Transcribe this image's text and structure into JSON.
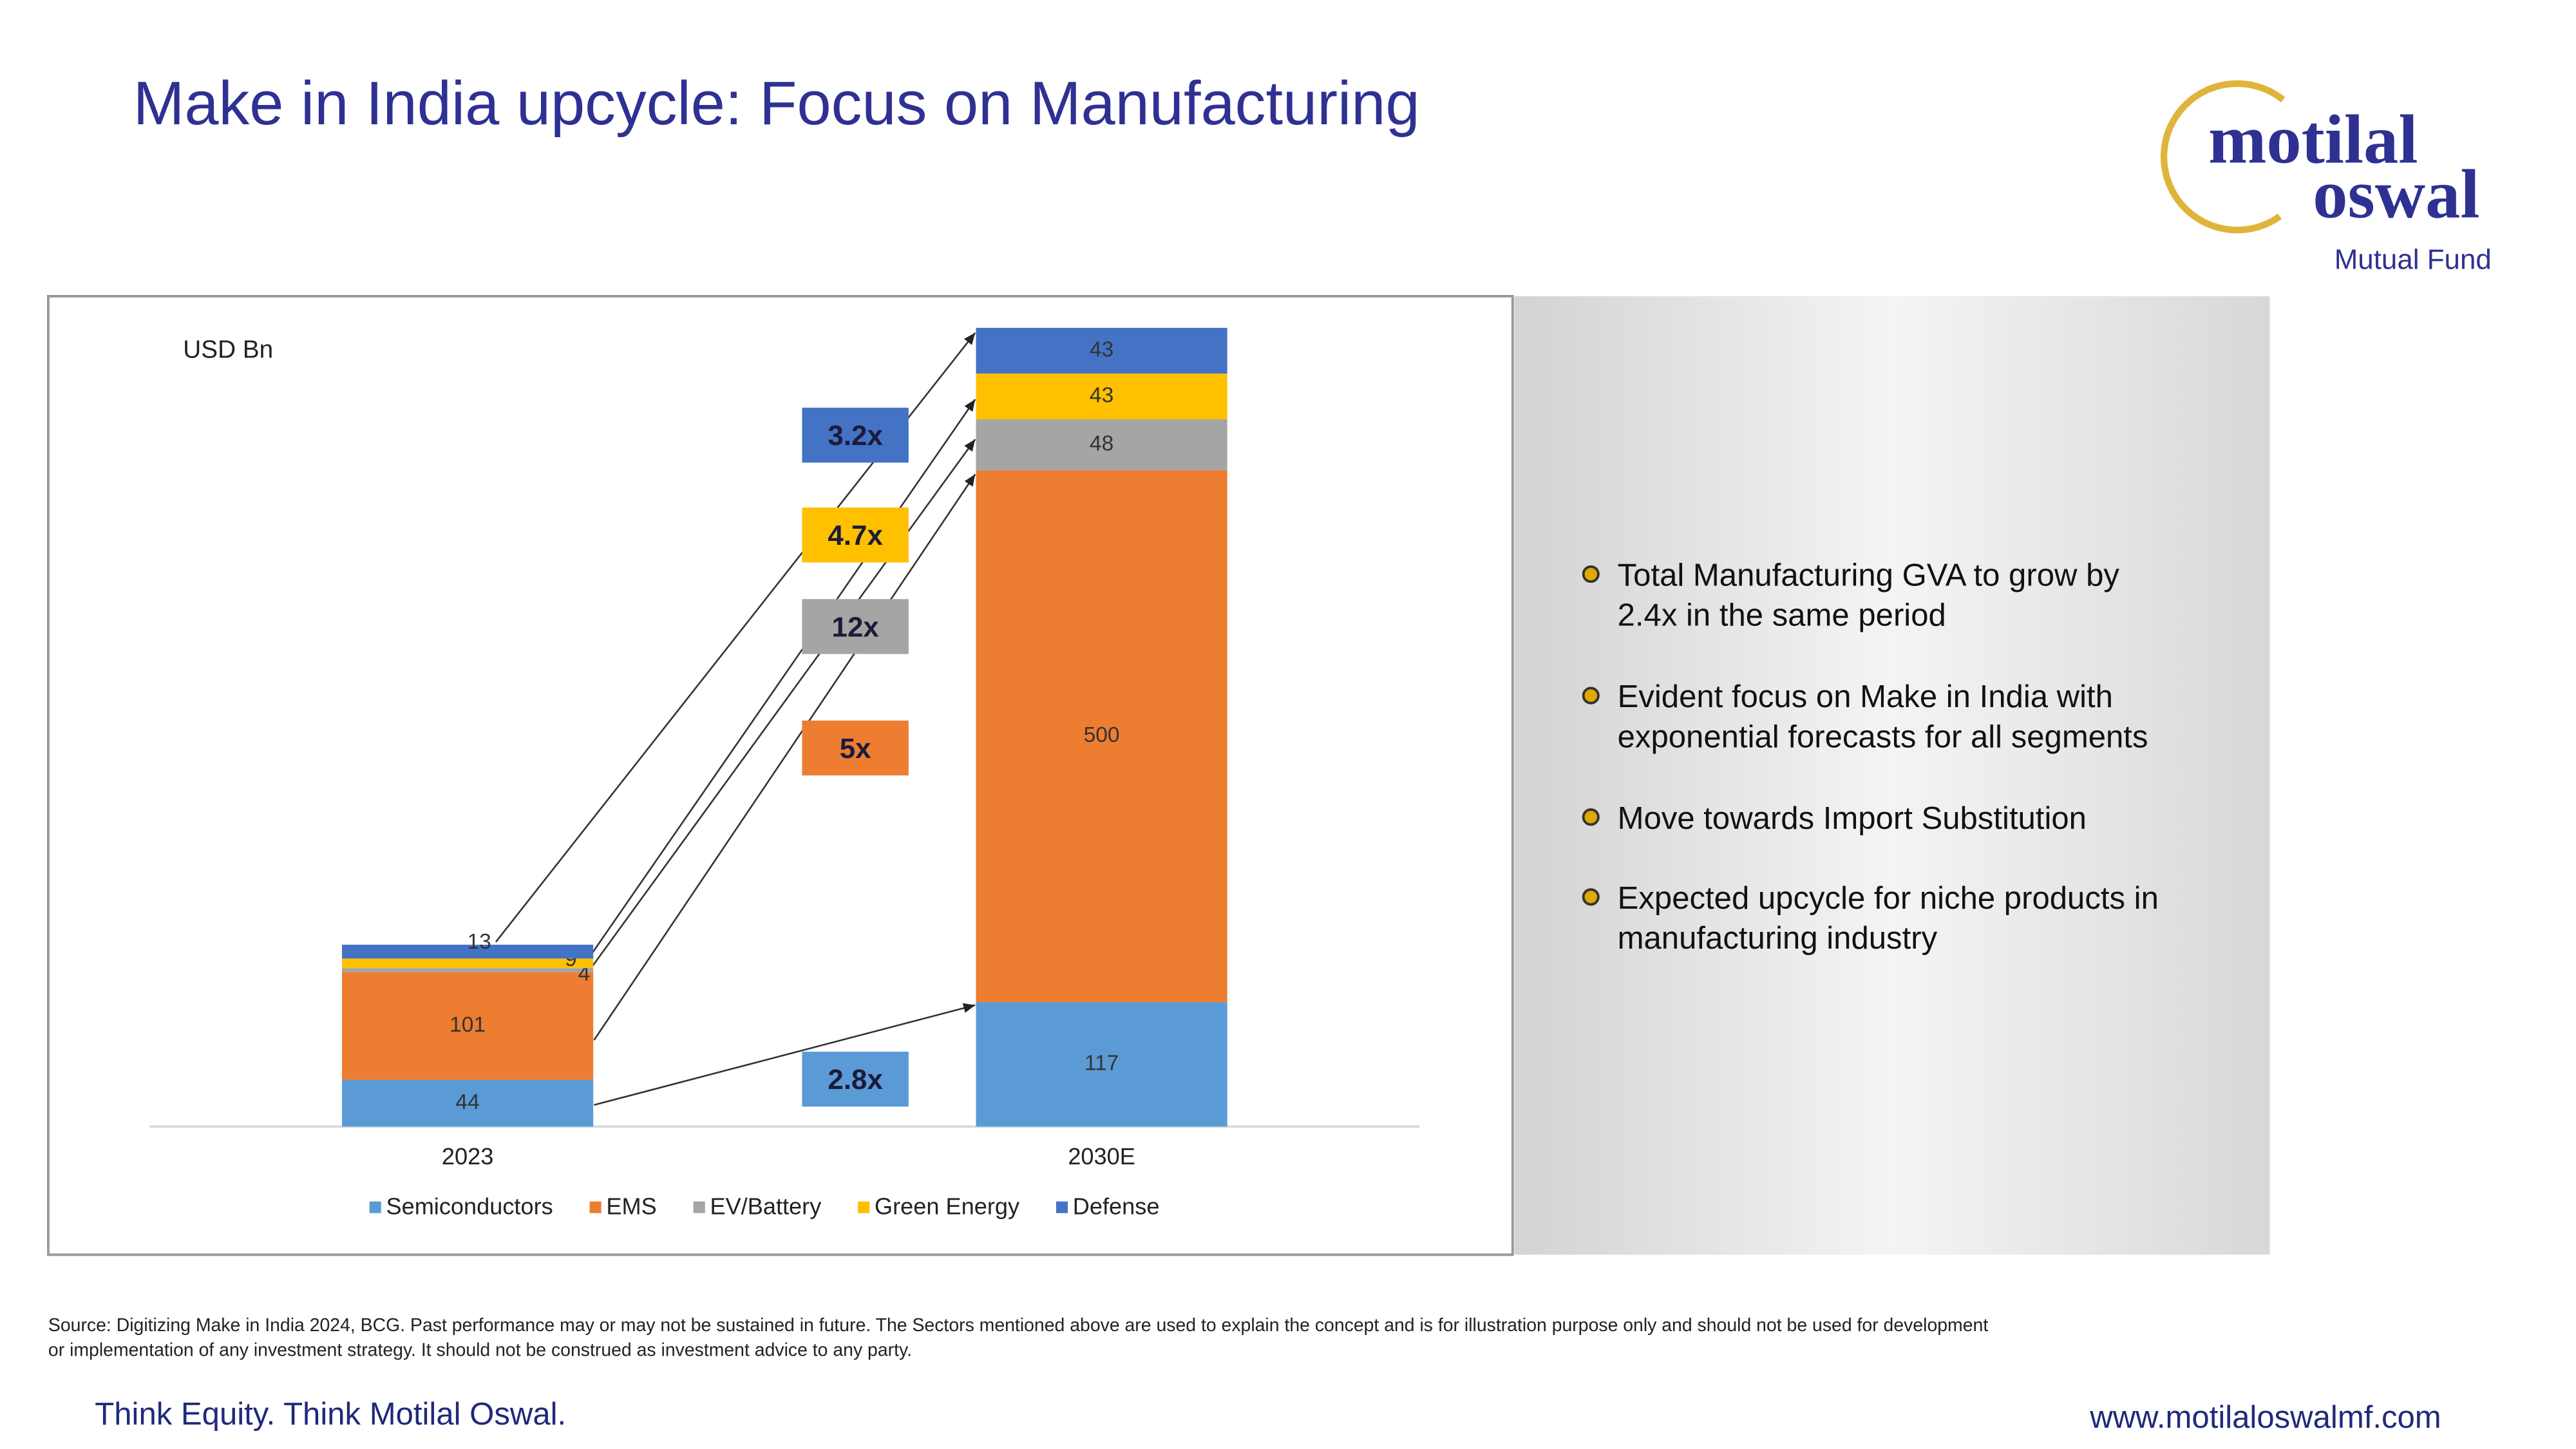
{
  "slide": {
    "title": "Make in India upcycle: Focus on Manufacturing",
    "logo": {
      "line1": "motilal",
      "line2": "oswal",
      "line3": "Mutual Fund"
    },
    "bullets": [
      [
        "Total Manufacturing GVA to grow by",
        "2.4x in the same period"
      ],
      [
        "Evident focus on Make in India with",
        "exponential forecasts for all segments"
      ],
      [
        "Move towards Import Substitution"
      ],
      [
        "Expected upcycle for niche products in",
        "manufacturing industry"
      ]
    ],
    "source": [
      "Source: Digitizing Make in India 2024, BCG. Past performance may or may not be sustained in future. The Sectors mentioned above are used to explain the concept and is for illustration purpose only and should not be used for development",
      "or implementation of any investment strategy. It should not be construed as investment advice to any party."
    ],
    "tagline": "Think Equity. Think Motilal Oswal.",
    "website": "www.motilaloswalmf.com"
  },
  "chart_data": {
    "type": "stacked_bar",
    "unit_label": "USD Bn",
    "categories": [
      "2023",
      "2030E"
    ],
    "series": [
      {
        "name": "Semiconductors",
        "color": "#5b9bd5",
        "values": [
          44,
          117
        ]
      },
      {
        "name": "EMS",
        "color": "#ed7d31",
        "values": [
          101,
          500
        ]
      },
      {
        "name": "EV/Battery",
        "color": "#a5a5a5",
        "values": [
          4,
          48
        ]
      },
      {
        "name": "Green Energy",
        "color": "#ffc000",
        "values": [
          9,
          43
        ]
      },
      {
        "name": "Defense",
        "color": "#4472c4",
        "values": [
          13,
          43
        ]
      }
    ],
    "annotations": [
      {
        "text": "3.2x",
        "color": "#4472c4"
      },
      {
        "text": "4.7x",
        "color": "#ffc000"
      },
      {
        "text": "12x",
        "color": "#a5a5a5"
      },
      {
        "text": "5x",
        "color": "#ed7d31"
      },
      {
        "text": "2.8x",
        "color": "#5b9bd5"
      }
    ]
  }
}
